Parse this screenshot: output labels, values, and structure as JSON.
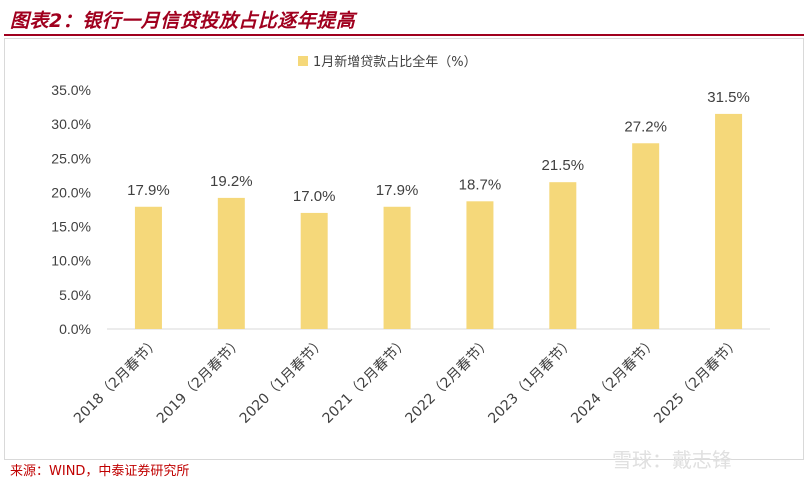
{
  "header": {
    "title": "图表2：银行一月信贷投放占比逐年提高"
  },
  "footer": {
    "source": "来源：WIND，中泰证券研究所",
    "watermark": "雪球：戴志锋"
  },
  "colors": {
    "accent": "#a0001e",
    "bar": "#f5d87a",
    "axis": "#d9d9d9",
    "text": "#404040"
  },
  "chart_data": {
    "type": "bar",
    "categories": [
      "2018（2月春节）",
      "2019（2月春节）",
      "2020（1月春节）",
      "2021（2月春节）",
      "2022（2月春节）",
      "2023（1月春节）",
      "2024（2月春节）",
      "2025（2月春节）"
    ],
    "series": [
      {
        "name": "1月新增贷款占比全年（%）",
        "values": [
          17.9,
          19.2,
          17.0,
          17.9,
          18.7,
          21.5,
          27.2,
          31.5
        ],
        "labels": [
          "17.9%",
          "19.2%",
          "17.0%",
          "17.9%",
          "18.7%",
          "21.5%",
          "27.2%",
          "31.5%"
        ]
      }
    ],
    "y_ticks": [
      "0.0%",
      "5.0%",
      "10.0%",
      "15.0%",
      "20.0%",
      "25.0%",
      "30.0%",
      "35.0%"
    ],
    "ylim": [
      0,
      35
    ],
    "title": "",
    "xlabel": "",
    "ylabel": "",
    "legend_position": "top-center",
    "grid": false
  }
}
